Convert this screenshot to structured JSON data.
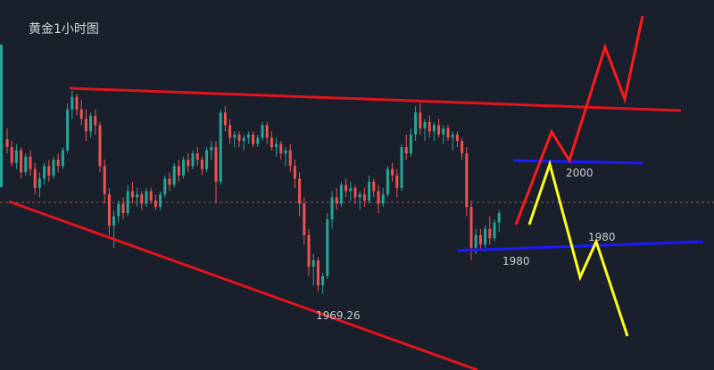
{
  "chart_data": {
    "type": "candlestick",
    "title": "黄金1小时图",
    "colors": {
      "background": "#1a1f2c",
      "up": "#26a69a",
      "down": "#ef5350",
      "trendline": "#e0141e",
      "support": "#1a1aff",
      "bull_path": "#ff1a1a",
      "bear_path": "#ffff1a",
      "dashed": "#8a5a5a"
    },
    "annotations": [
      {
        "text": "1969.26",
        "kind": "low-marker"
      },
      {
        "text": "2000",
        "kind": "resistance-label"
      },
      {
        "text": "1980",
        "kind": "support-label-upper"
      },
      {
        "text": "1980",
        "kind": "support-label-lower"
      }
    ],
    "candles": [
      [
        2018.5,
        2022,
        2014,
        2016
      ],
      [
        2016,
        2018,
        2010,
        2011
      ],
      [
        2011,
        2017,
        2009,
        2015
      ],
      [
        2015,
        2016,
        2006,
        2008
      ],
      [
        2008,
        2014,
        2007,
        2013
      ],
      [
        2013,
        2015,
        2007,
        2009
      ],
      [
        2009,
        2011,
        2001,
        2003
      ],
      [
        2003,
        2008,
        2000,
        2006
      ],
      [
        2006,
        2011,
        2004,
        2010
      ],
      [
        2010,
        2012,
        2005,
        2007
      ],
      [
        2007,
        2013,
        2006,
        2012
      ],
      [
        2012,
        2014,
        2008,
        2010
      ],
      [
        2010,
        2016,
        2009,
        2015
      ],
      [
        2015,
        2030,
        2014,
        2028
      ],
      [
        2028,
        2034,
        2025,
        2032
      ],
      [
        2032,
        2033,
        2026,
        2028
      ],
      [
        2028,
        2031,
        2023,
        2025
      ],
      [
        2025,
        2028,
        2018,
        2021
      ],
      [
        2021,
        2027,
        2019,
        2026
      ],
      [
        2026,
        2028,
        2020,
        2023
      ],
      [
        2023,
        2024,
        2008,
        2010
      ],
      [
        2010,
        2012,
        1998,
        2001
      ],
      [
        2001,
        2003,
        1988,
        1991
      ],
      [
        1991,
        1996,
        1984,
        1994
      ],
      [
        1994,
        1999,
        1992,
        1998
      ],
      [
        1998,
        2000,
        1993,
        1995
      ],
      [
        1995,
        2004,
        1994,
        2002
      ],
      [
        2002,
        2005,
        1998,
        2000
      ],
      [
        2000,
        2003,
        1997,
        2001
      ],
      [
        2001,
        2002,
        1996,
        1998
      ],
      [
        1998,
        2003,
        1997,
        2002
      ],
      [
        2002,
        2003,
        1998,
        1999
      ],
      [
        1999,
        2001,
        1996,
        1997
      ],
      [
        1997,
        2002,
        1996,
        2001
      ],
      [
        2001,
        2007,
        2000,
        2006
      ],
      [
        2006,
        2008,
        2002,
        2004
      ],
      [
        2004,
        2011,
        2003,
        2010
      ],
      [
        2010,
        2012,
        2005,
        2007
      ],
      [
        2007,
        2013,
        2006,
        2012
      ],
      [
        2012,
        2014,
        2008,
        2010
      ],
      [
        2010,
        2015,
        2009,
        2014
      ],
      [
        2014,
        2016,
        2010,
        2012
      ],
      [
        2012,
        2013,
        2007,
        2009
      ],
      [
        2009,
        2016,
        2008,
        2015
      ],
      [
        2015,
        2018,
        2012,
        2016
      ],
      [
        2016,
        2018,
        1998,
        2005
      ],
      [
        2005,
        2028,
        2004,
        2027
      ],
      [
        2027,
        2029,
        2021,
        2023
      ],
      [
        2023,
        2025,
        2017,
        2019
      ],
      [
        2019,
        2021,
        2016,
        2020
      ],
      [
        2020,
        2021,
        2016,
        2018
      ],
      [
        2018,
        2020,
        2015,
        2019
      ],
      [
        2019,
        2021,
        2017,
        2020
      ],
      [
        2020,
        2021,
        2016,
        2017
      ],
      [
        2017,
        2020,
        2016,
        2019
      ],
      [
        2019,
        2024,
        2018,
        2023
      ],
      [
        2023,
        2024,
        2017,
        2019
      ],
      [
        2019,
        2021,
        2015,
        2016
      ],
      [
        2016,
        2019,
        2013,
        2017
      ],
      [
        2017,
        2018,
        2012,
        2014
      ],
      [
        2014,
        2016,
        2010,
        2015
      ],
      [
        2015,
        2017,
        2008,
        2010
      ],
      [
        2010,
        2012,
        2003,
        2006
      ],
      [
        2006,
        2008,
        1994,
        1998
      ],
      [
        1998,
        2000,
        1985,
        1988
      ],
      [
        1988,
        1990,
        1975,
        1978
      ],
      [
        1978,
        1982,
        1972,
        1980
      ],
      [
        1980,
        1981,
        1970,
        1972
      ],
      [
        1972,
        1976,
        1969.26,
        1975
      ],
      [
        1975,
        1995,
        1974,
        1993
      ],
      [
        1993,
        2002,
        1990,
        2000
      ],
      [
        2000,
        2003,
        1996,
        1998
      ],
      [
        1998,
        2005,
        1997,
        2004
      ],
      [
        2004,
        2006,
        2000,
        2002
      ],
      [
        2002,
        2005,
        1999,
        2003
      ],
      [
        2003,
        2004,
        1998,
        2000
      ],
      [
        2000,
        2002,
        1996,
        2001
      ],
      [
        2001,
        2003,
        1997,
        1999
      ],
      [
        1999,
        2007,
        1998,
        2005
      ],
      [
        2005,
        2006,
        2000,
        2002
      ],
      [
        2002,
        2004,
        1995,
        1998
      ],
      [
        1998,
        2003,
        1997,
        2001
      ],
      [
        2001,
        2010,
        2000,
        2009
      ],
      [
        2009,
        2011,
        2005,
        2007
      ],
      [
        2007,
        2009,
        2000,
        2003
      ],
      [
        2003,
        2017,
        2002,
        2016
      ],
      [
        2016,
        2020,
        2012,
        2014
      ],
      [
        2014,
        2022,
        2013,
        2020
      ],
      [
        2020,
        2029,
        2018,
        2027
      ],
      [
        2027,
        2030,
        2020,
        2022
      ],
      [
        2022,
        2025,
        2018,
        2024
      ],
      [
        2024,
        2026,
        2019,
        2021
      ],
      [
        2021,
        2024,
        2018,
        2023
      ],
      [
        2023,
        2025,
        2019,
        2020
      ],
      [
        2020,
        2023,
        2017,
        2022
      ],
      [
        2022,
        2023,
        2018,
        2019
      ],
      [
        2019,
        2021,
        2015,
        2020
      ],
      [
        2020,
        2021,
        2016,
        2018
      ],
      [
        2018,
        2019,
        2012,
        2014
      ],
      [
        2014,
        2016,
        1994,
        1997
      ],
      [
        1997,
        1999,
        1980,
        1984
      ],
      [
        1984,
        1990,
        1982,
        1988
      ],
      [
        1988,
        1990,
        1983,
        1985
      ],
      [
        1985,
        1991,
        1984,
        1990
      ],
      [
        1990,
        1994,
        1985,
        1987
      ],
      [
        1987,
        1993,
        1986,
        1992
      ],
      [
        1992,
        1996,
        1989,
        1995
      ]
    ],
    "price_range": [
      1955,
      2060
    ]
  }
}
